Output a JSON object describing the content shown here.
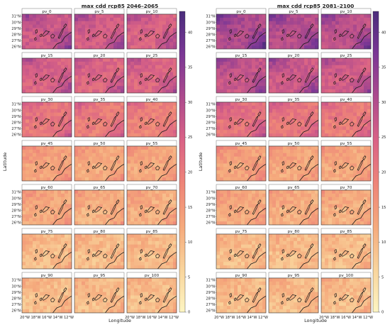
{
  "figure_type": "multi-panel map grid with shared colour scale",
  "chart_data": [
    {
      "type": "heatmap",
      "title": "max cdd rcp85 2046–2065",
      "xlabel": "Longitude",
      "ylabel": "Latitude",
      "panels": [
        {
          "label": "pv_0",
          "level": 26
        },
        {
          "label": "pv_5",
          "level": 25
        },
        {
          "label": "pv_10",
          "level": 24
        },
        {
          "label": "pv_15",
          "level": 24
        },
        {
          "label": "pv_20",
          "level": 23
        },
        {
          "label": "pv_25",
          "level": 23
        },
        {
          "label": "pv_30",
          "level": 20
        },
        {
          "label": "pv_35",
          "level": 19
        },
        {
          "label": "pv_40",
          "level": 18
        },
        {
          "label": "pv_45",
          "level": 13
        },
        {
          "label": "pv_50",
          "level": 12
        },
        {
          "label": "pv_55",
          "level": 12
        },
        {
          "label": "pv_60",
          "level": 12
        },
        {
          "label": "pv_65",
          "level": 11
        },
        {
          "label": "pv_70",
          "level": 11
        },
        {
          "label": "pv_75",
          "level": 9
        },
        {
          "label": "pv_80",
          "level": 9
        },
        {
          "label": "pv_85",
          "level": 9
        },
        {
          "label": "pv_90",
          "level": 9
        },
        {
          "label": "pv_95",
          "level": 9
        },
        {
          "label": "pv_100",
          "level": 9
        }
      ],
      "x_ticks": [
        "20°W",
        "18°W",
        "16°W",
        "14°W",
        "12°W"
      ],
      "y_ticks": [
        "31°N",
        "30°N",
        "29°N",
        "28°N",
        "27°N",
        "26°N"
      ],
      "x_range": [
        -20,
        -12
      ],
      "y_range": [
        26,
        31
      ]
    },
    {
      "type": "heatmap",
      "title": "max cdd rcp85 2081–2100",
      "xlabel": "Longitude",
      "ylabel": "Latitude",
      "panels": [
        {
          "label": "pv_0",
          "level": 30
        },
        {
          "label": "pv_5",
          "level": 29
        },
        {
          "label": "pv_10",
          "level": 28
        },
        {
          "label": "pv_15",
          "level": 27
        },
        {
          "label": "pv_20",
          "level": 26
        },
        {
          "label": "pv_25",
          "level": 25
        },
        {
          "label": "pv_30",
          "level": 21
        },
        {
          "label": "pv_35",
          "level": 20
        },
        {
          "label": "pv_40",
          "level": 19
        },
        {
          "label": "pv_45",
          "level": 13
        },
        {
          "label": "pv_50",
          "level": 12
        },
        {
          "label": "pv_55",
          "level": 12
        },
        {
          "label": "pv_60",
          "level": 12
        },
        {
          "label": "pv_65",
          "level": 11
        },
        {
          "label": "pv_70",
          "level": 11
        },
        {
          "label": "pv_75",
          "level": 9
        },
        {
          "label": "pv_80",
          "level": 9
        },
        {
          "label": "pv_85",
          "level": 9
        },
        {
          "label": "pv_90",
          "level": 9
        },
        {
          "label": "pv_95",
          "level": 9
        },
        {
          "label": "pv_100",
          "level": 9
        }
      ],
      "x_ticks": [
        "20°W",
        "18°W",
        "16°W",
        "14°W",
        "12°W"
      ],
      "y_ticks": [
        "31°N",
        "30°N",
        "29°N",
        "28°N",
        "27°N",
        "26°N"
      ],
      "x_range": [
        -20,
        -12
      ],
      "y_range": [
        26,
        31
      ]
    }
  ],
  "colorbar_left": {
    "ticks": [
      "0",
      "5",
      "10",
      "15",
      "20",
      "25",
      "30",
      "35",
      "40"
    ],
    "range": [
      0,
      43
    ]
  },
  "colorbar_right": {
    "ticks": [
      "0",
      "5",
      "10",
      "15",
      "20",
      "25",
      "30",
      "35",
      "40"
    ],
    "range": [
      0,
      43
    ]
  },
  "colorscale": [
    "#fdf5c2",
    "#f9d49c",
    "#f5a97c",
    "#ee8478",
    "#d96286",
    "#ad4a8d",
    "#7b3795",
    "#4a2c7b"
  ],
  "colors": {
    "coast": "#1a1a1a",
    "frame": "#333333"
  }
}
